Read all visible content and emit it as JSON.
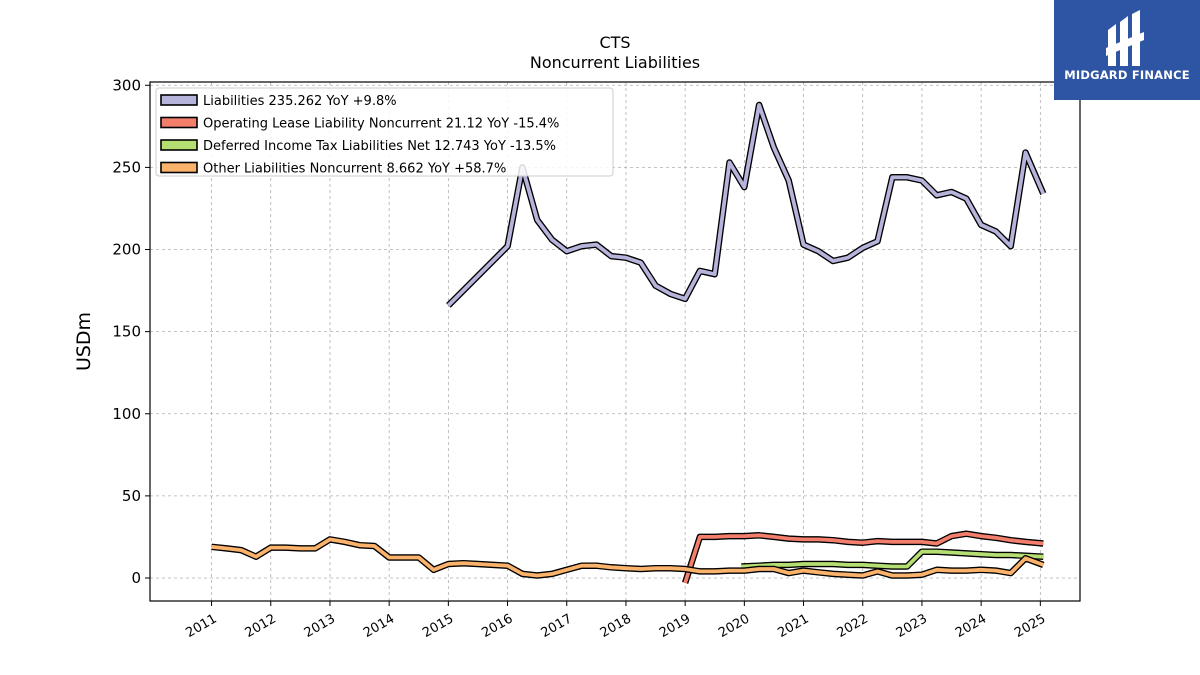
{
  "chart_data": {
    "type": "line",
    "title": "CTS",
    "subtitle": "Noncurrent  Liabilities",
    "xlabel": "",
    "ylabel": "USDm",
    "ylim": [
      -14,
      302
    ],
    "xlim": [
      2009.96,
      2025.67
    ],
    "yticks": [
      0,
      50,
      100,
      150,
      200,
      250,
      300
    ],
    "xticks": [
      2011,
      2012,
      2013,
      2014,
      2015,
      2016,
      2017,
      2018,
      2019,
      2020,
      2021,
      2022,
      2023,
      2024,
      2025
    ],
    "grid": true,
    "legend_position": "top-left",
    "series": [
      {
        "name": "Liabilities  235.262 YoY +9.8%",
        "color": "#b7b4dc",
        "points": [
          [
            2015.0,
            166
          ],
          [
            2016.0,
            202
          ],
          [
            2016.25,
            250
          ],
          [
            2016.5,
            218
          ],
          [
            2016.75,
            206
          ],
          [
            2017.0,
            199
          ],
          [
            2017.25,
            202
          ],
          [
            2017.5,
            203
          ],
          [
            2017.75,
            196
          ],
          [
            2018.0,
            195
          ],
          [
            2018.25,
            192
          ],
          [
            2018.5,
            178
          ],
          [
            2018.75,
            173
          ],
          [
            2019.0,
            170
          ],
          [
            2019.25,
            187
          ],
          [
            2019.5,
            185
          ],
          [
            2019.75,
            253
          ],
          [
            2020.0,
            238
          ],
          [
            2020.25,
            288
          ],
          [
            2020.5,
            262
          ],
          [
            2020.75,
            242
          ],
          [
            2021.0,
            203
          ],
          [
            2021.25,
            199
          ],
          [
            2021.5,
            193
          ],
          [
            2021.75,
            195
          ],
          [
            2022.0,
            201
          ],
          [
            2022.25,
            205
          ],
          [
            2022.5,
            244
          ],
          [
            2022.75,
            244
          ],
          [
            2023.0,
            242
          ],
          [
            2023.25,
            233
          ],
          [
            2023.5,
            235
          ],
          [
            2023.75,
            231
          ],
          [
            2024.0,
            215
          ],
          [
            2024.25,
            211
          ],
          [
            2024.5,
            202
          ],
          [
            2024.75,
            259
          ],
          [
            2025.05,
            234
          ]
        ]
      },
      {
        "name": "Operating Lease Liability Noncurrent  21.12 YoY -15.4%",
        "color": "#f47e6c",
        "points": [
          [
            2019.0,
            -3
          ],
          [
            2019.25,
            25
          ],
          [
            2019.5,
            25
          ],
          [
            2019.75,
            25.5
          ],
          [
            2020.0,
            25.5
          ],
          [
            2020.25,
            26
          ],
          [
            2020.5,
            25
          ],
          [
            2020.75,
            24
          ],
          [
            2021.0,
            23.5
          ],
          [
            2021.25,
            23.5
          ],
          [
            2021.5,
            23
          ],
          [
            2021.75,
            22
          ],
          [
            2022.0,
            21.5
          ],
          [
            2022.25,
            22.5
          ],
          [
            2022.5,
            22
          ],
          [
            2022.75,
            22
          ],
          [
            2023.0,
            22
          ],
          [
            2023.25,
            21
          ],
          [
            2023.5,
            25.5
          ],
          [
            2023.75,
            27
          ],
          [
            2024.0,
            25.5
          ],
          [
            2024.25,
            24.5
          ],
          [
            2024.5,
            23
          ],
          [
            2024.75,
            22
          ],
          [
            2025.05,
            21
          ]
        ]
      },
      {
        "name": "Deferred Income Tax Liabilities Net  12.743 YoY -13.5%",
        "color": "#b5df72",
        "points": [
          [
            2019.95,
            7
          ],
          [
            2020.25,
            7.5
          ],
          [
            2020.5,
            8
          ],
          [
            2020.75,
            8
          ],
          [
            2021.0,
            8.5
          ],
          [
            2021.25,
            8.5
          ],
          [
            2021.5,
            8.5
          ],
          [
            2021.75,
            8
          ],
          [
            2022.0,
            8
          ],
          [
            2022.25,
            7.5
          ],
          [
            2022.5,
            7
          ],
          [
            2022.75,
            7
          ],
          [
            2023.0,
            16
          ],
          [
            2023.25,
            16
          ],
          [
            2023.5,
            15.5
          ],
          [
            2023.75,
            15
          ],
          [
            2024.0,
            14.5
          ],
          [
            2024.25,
            14
          ],
          [
            2024.5,
            14
          ],
          [
            2024.75,
            13.5
          ],
          [
            2025.05,
            13
          ]
        ]
      },
      {
        "name": "Other Liabilities Noncurrent  8.662 YoY +58.7%",
        "color": "#fbb36b",
        "points": [
          [
            2011.0,
            19
          ],
          [
            2011.25,
            18
          ],
          [
            2011.5,
            17
          ],
          [
            2011.75,
            13
          ],
          [
            2012.0,
            18.5
          ],
          [
            2012.25,
            18.5
          ],
          [
            2012.5,
            18
          ],
          [
            2012.75,
            18
          ],
          [
            2013.0,
            23.5
          ],
          [
            2013.25,
            22
          ],
          [
            2013.5,
            20
          ],
          [
            2013.75,
            19.5
          ],
          [
            2014.0,
            12.5
          ],
          [
            2014.25,
            12.5
          ],
          [
            2014.5,
            12.5
          ],
          [
            2014.75,
            5
          ],
          [
            2015.0,
            8.5
          ],
          [
            2015.25,
            9
          ],
          [
            2015.5,
            8.5
          ],
          [
            2015.75,
            8
          ],
          [
            2016.0,
            7.5
          ],
          [
            2016.25,
            2.5
          ],
          [
            2016.5,
            1.5
          ],
          [
            2016.75,
            2.5
          ],
          [
            2017.0,
            5
          ],
          [
            2017.25,
            7.5
          ],
          [
            2017.5,
            7.5
          ],
          [
            2017.75,
            6.5
          ],
          [
            2018.0,
            6
          ],
          [
            2018.25,
            5.5
          ],
          [
            2018.5,
            6
          ],
          [
            2018.75,
            6
          ],
          [
            2019.0,
            5.5
          ],
          [
            2019.25,
            4
          ],
          [
            2019.5,
            4
          ],
          [
            2019.75,
            4.5
          ],
          [
            2020.0,
            4.5
          ],
          [
            2020.25,
            5.5
          ],
          [
            2020.5,
            5.5
          ],
          [
            2020.75,
            3
          ],
          [
            2021.0,
            4.5
          ],
          [
            2021.25,
            3.5
          ],
          [
            2021.5,
            2.5
          ],
          [
            2021.75,
            2
          ],
          [
            2022.0,
            1.5
          ],
          [
            2022.25,
            4
          ],
          [
            2022.5,
            1.5
          ],
          [
            2022.75,
            1.5
          ],
          [
            2023.0,
            2
          ],
          [
            2023.25,
            5
          ],
          [
            2023.5,
            4.5
          ],
          [
            2023.75,
            4.5
          ],
          [
            2024.0,
            5
          ],
          [
            2024.25,
            4.5
          ],
          [
            2024.5,
            3
          ],
          [
            2024.75,
            12
          ],
          [
            2025.05,
            8
          ]
        ]
      }
    ]
  },
  "logo": {
    "text": "MIDGARD FINANCE",
    "icon": "midgard-logo-icon",
    "background": "#2e55a4"
  }
}
